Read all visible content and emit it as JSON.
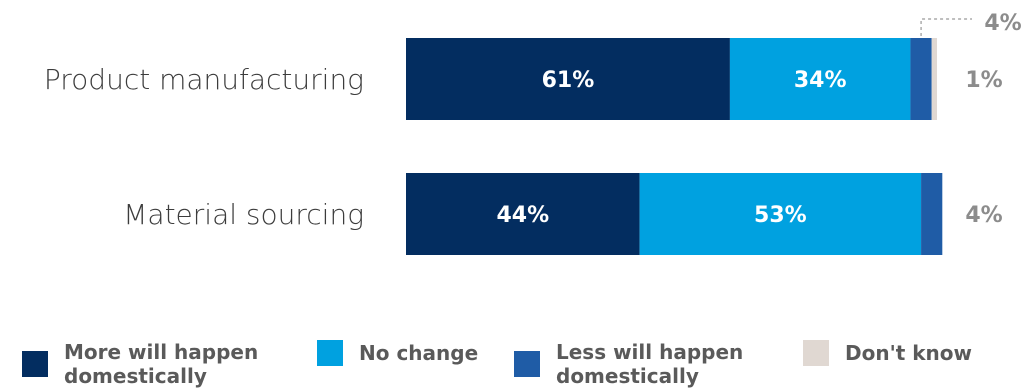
{
  "chart_data": {
    "type": "bar",
    "orientation": "horizontal",
    "stacked": true,
    "categories": [
      "Product manufacturing",
      "Material sourcing"
    ],
    "series": [
      {
        "name": "More will happen domestically",
        "color": "#032d60",
        "values": [
          61,
          44
        ],
        "labels": [
          "61%",
          "44%"
        ]
      },
      {
        "name": "No change",
        "color": "#00a1e0",
        "values": [
          34,
          53
        ],
        "labels": [
          "34%",
          "53%"
        ]
      },
      {
        "name": "Less will happen domestically",
        "color": "#1f5ca6",
        "values": [
          4,
          4
        ],
        "labels": [
          "4%",
          "4%"
        ]
      },
      {
        "name": "Don't know",
        "color": "#e0d8d2",
        "values": [
          1,
          0
        ],
        "labels": [
          "1%",
          ""
        ]
      }
    ],
    "xlim": [
      0,
      100
    ],
    "grid": false,
    "legend_position": "bottom"
  }
}
